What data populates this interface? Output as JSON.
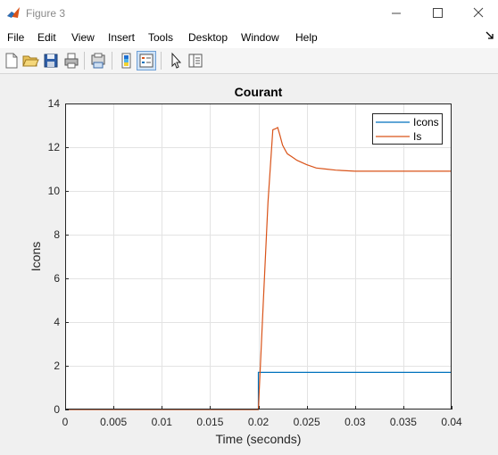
{
  "window": {
    "title": "Figure 3",
    "icon": "matlab-icon"
  },
  "menu": [
    "File",
    "Edit",
    "View",
    "Insert",
    "Tools",
    "Desktop",
    "Window",
    "Help"
  ],
  "toolbar": [
    "new-figure-icon",
    "open-file-icon",
    "save-icon",
    "print-icon",
    "print-preview-icon",
    "colorbar-icon",
    "legend-icon",
    "pointer-icon",
    "property-inspector-icon"
  ],
  "colors": {
    "icons_line": "#0072BD",
    "is_line": "#D95319"
  },
  "chart_data": {
    "type": "line",
    "title": "Courant",
    "xlabel": "Time (seconds)",
    "ylabel": "Icons",
    "xlim": [
      0,
      0.04
    ],
    "ylim": [
      0,
      14
    ],
    "xticks": [
      0,
      0.005,
      0.01,
      0.015,
      0.02,
      0.025,
      0.03,
      0.035,
      0.04
    ],
    "xtick_labels": [
      "0",
      "0.005",
      "0.01",
      "0.015",
      "0.02",
      "0.025",
      "0.03",
      "0.035",
      "0.04"
    ],
    "yticks": [
      0,
      2,
      4,
      6,
      8,
      10,
      12,
      14
    ],
    "ytick_labels": [
      "0",
      "2",
      "4",
      "6",
      "8",
      "10",
      "12",
      "14"
    ],
    "grid": true,
    "legend_position": "top-right",
    "series": [
      {
        "name": "Icons",
        "color": "#0072BD",
        "x": [
          0,
          0.02,
          0.02,
          0.0201,
          0.04
        ],
        "y": [
          0,
          0,
          1.7,
          1.7,
          1.7
        ]
      },
      {
        "name": "Is",
        "color": "#D95319",
        "x": [
          0,
          0.02,
          0.0205,
          0.021,
          0.0215,
          0.0218,
          0.022,
          0.0222,
          0.0225,
          0.0228,
          0.023,
          0.0235,
          0.024,
          0.025,
          0.026,
          0.027,
          0.028,
          0.03,
          0.032,
          0.035,
          0.04
        ],
        "y": [
          0,
          0,
          4.8,
          9.5,
          12.8,
          12.85,
          12.9,
          12.6,
          12.1,
          11.85,
          11.7,
          11.55,
          11.4,
          11.2,
          11.05,
          11.0,
          10.95,
          10.9,
          10.9,
          10.9,
          10.9
        ]
      }
    ]
  }
}
